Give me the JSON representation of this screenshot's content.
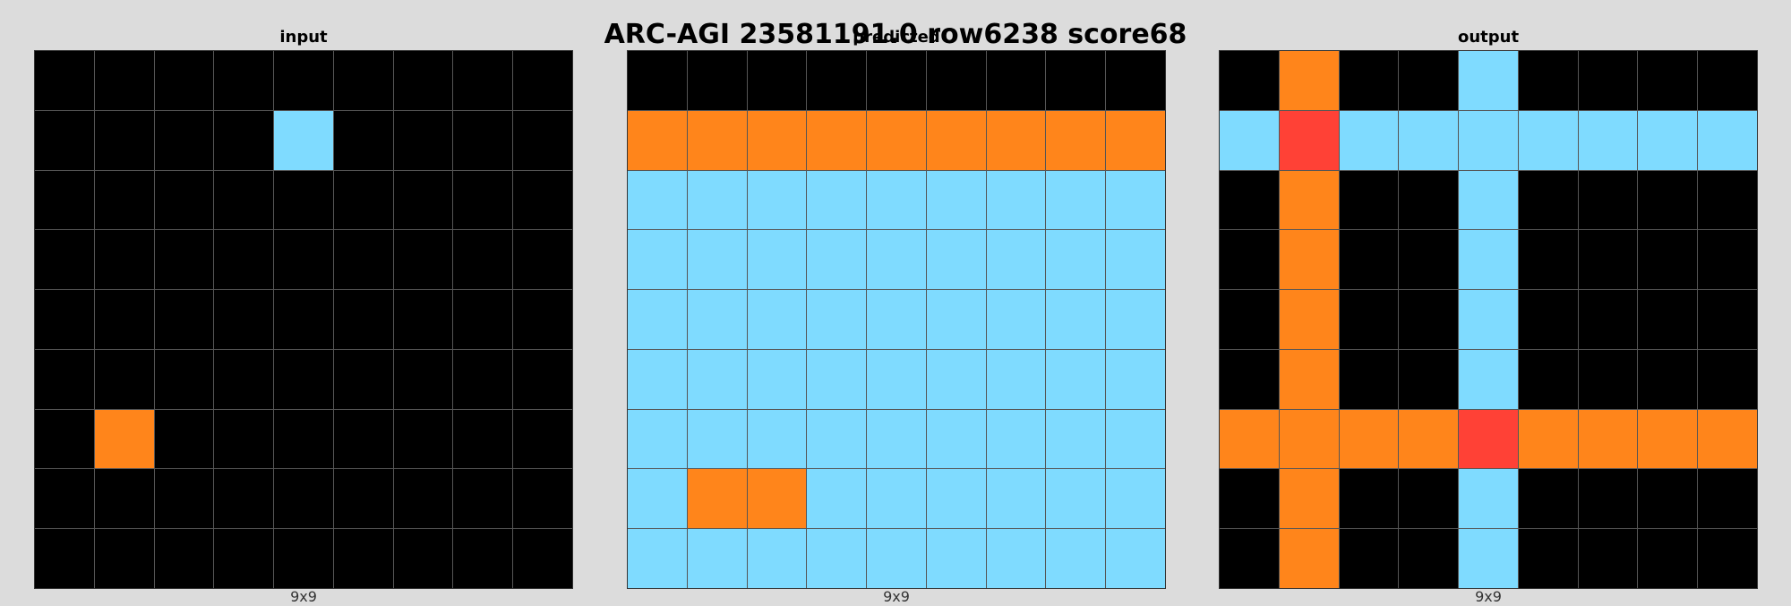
{
  "title": "ARC-AGI 23581191.0 row6238 score68",
  "colors": {
    "0": "#000000",
    "2": "#ff4136",
    "7": "#ff851b",
    "8": "#7fdbff"
  },
  "panels": [
    {
      "label": "input",
      "size": "9x9",
      "grid": [
        [
          0,
          0,
          0,
          0,
          0,
          0,
          0,
          0,
          0
        ],
        [
          0,
          0,
          0,
          0,
          8,
          0,
          0,
          0,
          0
        ],
        [
          0,
          0,
          0,
          0,
          0,
          0,
          0,
          0,
          0
        ],
        [
          0,
          0,
          0,
          0,
          0,
          0,
          0,
          0,
          0
        ],
        [
          0,
          0,
          0,
          0,
          0,
          0,
          0,
          0,
          0
        ],
        [
          0,
          0,
          0,
          0,
          0,
          0,
          0,
          0,
          0
        ],
        [
          0,
          7,
          0,
          0,
          0,
          0,
          0,
          0,
          0
        ],
        [
          0,
          0,
          0,
          0,
          0,
          0,
          0,
          0,
          0
        ],
        [
          0,
          0,
          0,
          0,
          0,
          0,
          0,
          0,
          0
        ]
      ]
    },
    {
      "label": "predicted",
      "size": "9x9",
      "grid": [
        [
          0,
          0,
          0,
          0,
          0,
          0,
          0,
          0,
          0
        ],
        [
          7,
          7,
          7,
          7,
          7,
          7,
          7,
          7,
          7
        ],
        [
          8,
          8,
          8,
          8,
          8,
          8,
          8,
          8,
          8
        ],
        [
          8,
          8,
          8,
          8,
          8,
          8,
          8,
          8,
          8
        ],
        [
          8,
          8,
          8,
          8,
          8,
          8,
          8,
          8,
          8
        ],
        [
          8,
          8,
          8,
          8,
          8,
          8,
          8,
          8,
          8
        ],
        [
          8,
          8,
          8,
          8,
          8,
          8,
          8,
          8,
          8
        ],
        [
          8,
          7,
          7,
          8,
          8,
          8,
          8,
          8,
          8
        ],
        [
          8,
          8,
          8,
          8,
          8,
          8,
          8,
          8,
          8
        ]
      ]
    },
    {
      "label": "output",
      "size": "9x9",
      "grid": [
        [
          0,
          7,
          0,
          0,
          8,
          0,
          0,
          0,
          0
        ],
        [
          8,
          2,
          8,
          8,
          8,
          8,
          8,
          8,
          8
        ],
        [
          0,
          7,
          0,
          0,
          8,
          0,
          0,
          0,
          0
        ],
        [
          0,
          7,
          0,
          0,
          8,
          0,
          0,
          0,
          0
        ],
        [
          0,
          7,
          0,
          0,
          8,
          0,
          0,
          0,
          0
        ],
        [
          0,
          7,
          0,
          0,
          8,
          0,
          0,
          0,
          0
        ],
        [
          7,
          7,
          7,
          7,
          2,
          7,
          7,
          7,
          7
        ],
        [
          0,
          7,
          0,
          0,
          8,
          0,
          0,
          0,
          0
        ],
        [
          0,
          7,
          0,
          0,
          8,
          0,
          0,
          0,
          0
        ]
      ]
    }
  ]
}
